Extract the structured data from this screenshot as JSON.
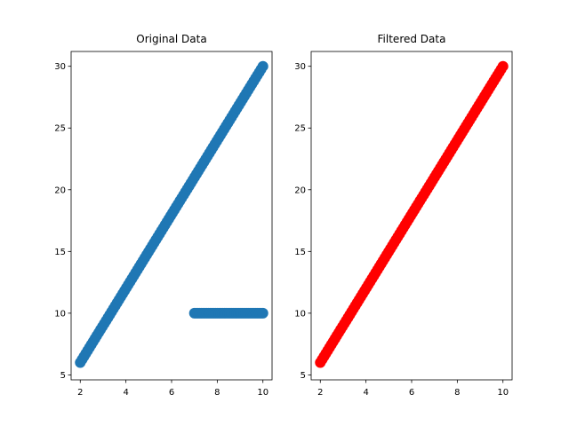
{
  "chart_data": [
    {
      "type": "scatter",
      "title": "Original Data",
      "xlabel": "",
      "ylabel": "",
      "xlim": [
        1.6,
        10.4
      ],
      "ylim": [
        4.6,
        31.2
      ],
      "xticks": [
        2,
        4,
        6,
        8,
        10
      ],
      "yticks": [
        5,
        10,
        15,
        20,
        25,
        30
      ],
      "grid": false,
      "series": [
        {
          "color": "#1f77b4",
          "segments": [
            {
              "x_start": 2,
              "x_end": 10,
              "slope": 3,
              "intercept": 0,
              "count": 100
            },
            {
              "x_start": 7,
              "x_end": 10,
              "slope": 0,
              "intercept": 10,
              "count": 40
            }
          ]
        }
      ]
    },
    {
      "type": "scatter",
      "title": "Filtered Data",
      "xlabel": "",
      "ylabel": "",
      "xlim": [
        1.6,
        10.4
      ],
      "ylim": [
        4.6,
        31.2
      ],
      "xticks": [
        2,
        4,
        6,
        8,
        10
      ],
      "yticks": [
        5,
        10,
        15,
        20,
        25,
        30
      ],
      "grid": false,
      "series": [
        {
          "color": "#ff0000",
          "segments": [
            {
              "x_start": 2,
              "x_end": 10,
              "slope": 3,
              "intercept": 0,
              "count": 100
            }
          ]
        }
      ]
    }
  ]
}
